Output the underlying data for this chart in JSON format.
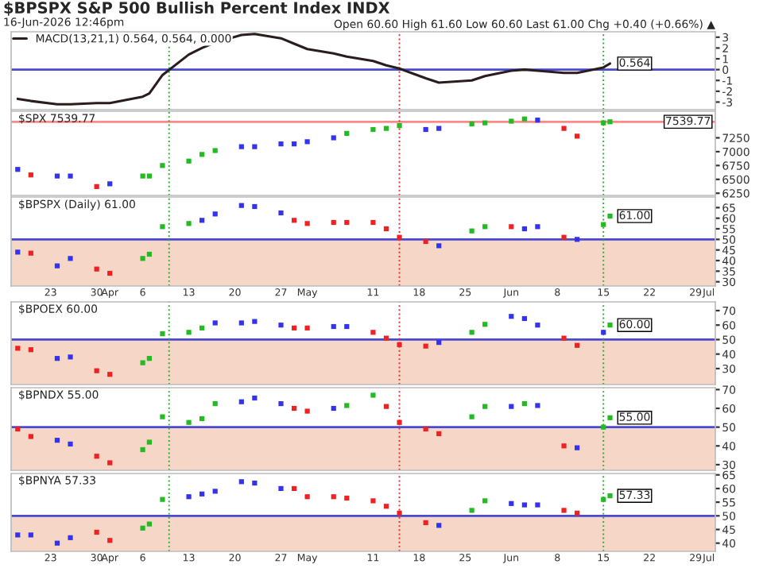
{
  "chart_data": [
    {
      "type": "line",
      "title": "$BPSPX S&P 500 Bullish Percent Index INDX",
      "subtitle": "16-Jun-2026 12:46pm",
      "annotations": [
        "Open 60.60 High 61.60 Low 60.60 Last 61.00 Chg +0.40 (+0.66%) ▲",
        {
          "text": "0.564",
          "x": "2026-06-16",
          "y": 0.564
        }
      ],
      "legend": "top left",
      "tick_labels": "y",
      "x": [
        "2026-03-18",
        "2026-03-20",
        "2026-03-24",
        "2026-03-26",
        "2026-03-30",
        "2026-04-01",
        "2026-04-06",
        "2026-04-07",
        "2026-04-09",
        "2026-04-13",
        "2026-04-15",
        "2026-04-17",
        "2026-04-21",
        "2026-04-23",
        "2026-04-27",
        "2026-04-29",
        "2026-05-01",
        "2026-05-05",
        "2026-05-07",
        "2026-05-11",
        "2026-05-13",
        "2026-05-15",
        "2026-05-19",
        "2026-05-21",
        "2026-05-26",
        "2026-05-28",
        "2026-06-01",
        "2026-06-03",
        "2026-06-05",
        "2026-06-09",
        "2026-06-11",
        "2026-06-15",
        "2026-06-16"
      ],
      "series": [
        {
          "name": "MACD(13,21,1) 0.564, 0.564, 0.000",
          "color": "#2b1d1d",
          "values": [
            -2.7,
            -2.9,
            -3.2,
            -3.2,
            -3.1,
            -3.1,
            -2.5,
            -2.2,
            -0.5,
            1.4,
            2.0,
            2.5,
            3.2,
            3.3,
            2.9,
            2.4,
            1.9,
            1.5,
            1.2,
            0.8,
            0.4,
            0.1,
            -0.8,
            -1.2,
            -1.0,
            -0.6,
            -0.1,
            0,
            -0.1,
            -0.3,
            -0.3,
            0.2,
            0.564
          ]
        }
      ],
      "xlim": [
        "2026-03-17",
        "2026-07-02"
      ],
      "ylim": [
        -3.7,
        3.5
      ],
      "yticks": [
        -3,
        -2,
        -1,
        0,
        1,
        2,
        3
      ],
      "ref_lines": [
        {
          "axis": "y",
          "value": 0,
          "color": "#4a4ad0",
          "line_style": "solid"
        },
        {
          "axis": "x",
          "value": "2026-04-10",
          "color": "#33aa33",
          "line_style": "dotted"
        },
        {
          "axis": "x",
          "value": "2026-05-15",
          "color": "#dd3333",
          "line_style": "dotted"
        },
        {
          "axis": "x",
          "value": "2026-06-15",
          "color": "#33aa33",
          "line_style": "dotted"
        }
      ]
    },
    {
      "type": "scatter",
      "title": "$SPX 7539.77",
      "marker": "square",
      "tick_labels": "y",
      "x": [
        "2026-03-18",
        "2026-03-20",
        "2026-03-24",
        "2026-03-26",
        "2026-03-30",
        "2026-04-01",
        "2026-04-06",
        "2026-04-07",
        "2026-04-09",
        "2026-04-13",
        "2026-04-15",
        "2026-04-17",
        "2026-04-21",
        "2026-04-23",
        "2026-04-27",
        "2026-04-29",
        "2026-05-01",
        "2026-05-05",
        "2026-05-07",
        "2026-05-11",
        "2026-05-13",
        "2026-05-15",
        "2026-05-19",
        "2026-05-21",
        "2026-05-26",
        "2026-05-28",
        "2026-06-01",
        "2026-06-03",
        "2026-06-05",
        "2026-06-09",
        "2026-06-11",
        "2026-06-15",
        "2026-06-16"
      ],
      "series": [
        {
          "values": [
            6680,
            6580,
            6560,
            6560,
            6370,
            6420,
            6560,
            6560,
            6750,
            6830,
            6950,
            7020,
            7090,
            7090,
            7140,
            7140,
            7180,
            7250,
            7330,
            7400,
            7420,
            7470,
            7400,
            7420,
            7500,
            7520,
            7550,
            7590,
            7570,
            7420,
            7280,
            7520,
            7539.77
          ],
          "colors": [
            "#3333ee",
            "#ee2222",
            "#3333ee",
            "#3333ee",
            "#ee2222",
            "#3333ee",
            "#22bb22",
            "#22bb22",
            "#22bb22",
            "#22bb22",
            "#22bb22",
            "#22bb22",
            "#3333ee",
            "#3333ee",
            "#3333ee",
            "#3333ee",
            "#3333ee",
            "#3333ee",
            "#22bb22",
            "#22bb22",
            "#22bb22",
            "#22bb22",
            "#3333ee",
            "#3333ee",
            "#22bb22",
            "#22bb22",
            "#22bb22",
            "#22bb22",
            "#3333ee",
            "#ee2222",
            "#ee2222",
            "#22bb22",
            "#22bb22"
          ]
        }
      ],
      "xlim": [
        "2026-03-17",
        "2026-07-02"
      ],
      "ylim": [
        6210,
        7730
      ],
      "yticks": [
        6250,
        6500,
        6750,
        7000,
        7250
      ],
      "ref_lines": [
        {
          "axis": "y",
          "value": 7539.77,
          "label": "7539.77",
          "color": "#ff8888",
          "line_style": "solid"
        },
        {
          "axis": "x",
          "value": "2026-04-10",
          "color": "#33aa33",
          "line_style": "dotted"
        },
        {
          "axis": "x",
          "value": "2026-05-15",
          "color": "#dd3333",
          "line_style": "dotted"
        },
        {
          "axis": "x",
          "value": "2026-06-15",
          "color": "#33aa33",
          "line_style": "dotted"
        }
      ]
    },
    {
      "type": "scatter",
      "title": "$BPSPX (Daily) 61.00",
      "marker": "square",
      "annotations": [
        {
          "text": "61.00",
          "x": "2026-06-16",
          "y": 61.0
        }
      ],
      "x": [
        "2026-03-18",
        "2026-03-20",
        "2026-03-24",
        "2026-03-26",
        "2026-03-30",
        "2026-04-01",
        "2026-04-06",
        "2026-04-07",
        "2026-04-09",
        "2026-04-13",
        "2026-04-15",
        "2026-04-17",
        "2026-04-21",
        "2026-04-23",
        "2026-04-27",
        "2026-04-29",
        "2026-05-01",
        "2026-05-05",
        "2026-05-07",
        "2026-05-11",
        "2026-05-13",
        "2026-05-15",
        "2026-05-19",
        "2026-05-21",
        "2026-05-26",
        "2026-05-28",
        "2026-06-01",
        "2026-06-03",
        "2026-06-05",
        "2026-06-09",
        "2026-06-11",
        "2026-06-15",
        "2026-06-16"
      ],
      "series": [
        {
          "values": [
            44,
            43.5,
            37.5,
            41,
            36,
            34,
            41,
            43,
            56,
            57.5,
            59,
            62,
            66,
            65.5,
            62.5,
            59,
            57.5,
            58,
            58,
            58,
            55,
            51,
            49,
            47,
            54,
            56,
            56,
            55,
            56,
            51,
            50,
            57,
            61.0
          ],
          "colors": [
            "#3333ee",
            "#ee2222",
            "#3333ee",
            "#3333ee",
            "#ee2222",
            "#ee2222",
            "#22bb22",
            "#22bb22",
            "#22bb22",
            "#22bb22",
            "#3333ee",
            "#3333ee",
            "#3333ee",
            "#3333ee",
            "#3333ee",
            "#ee2222",
            "#ee2222",
            "#ee2222",
            "#ee2222",
            "#ee2222",
            "#ee2222",
            "#ee2222",
            "#ee2222",
            "#3333ee",
            "#22bb22",
            "#22bb22",
            "#ee2222",
            "#3333ee",
            "#3333ee",
            "#ee2222",
            "#3333ee",
            "#22bb22",
            "#22bb22"
          ]
        }
      ],
      "xlim": [
        "2026-03-17",
        "2026-07-02"
      ],
      "ylim": [
        28,
        70
      ],
      "yticks": [
        30,
        35,
        40,
        45,
        50,
        55,
        60,
        65
      ],
      "xticks": [
        {
          "value": "2026-03-23",
          "label": "23"
        },
        {
          "value": "2026-03-30",
          "label": "30"
        },
        {
          "value": "2026-04-01",
          "label": "Apr"
        },
        {
          "value": "2026-04-06",
          "label": "6"
        },
        {
          "value": "2026-04-13",
          "label": "13"
        },
        {
          "value": "2026-04-20",
          "label": "20"
        },
        {
          "value": "2026-04-27",
          "label": "27"
        },
        {
          "value": "2026-05-01",
          "label": "May"
        },
        {
          "value": "2026-05-11",
          "label": "11"
        },
        {
          "value": "2026-05-18",
          "label": "18"
        },
        {
          "value": "2026-05-25",
          "label": "25"
        },
        {
          "value": "2026-06-01",
          "label": "Jun"
        },
        {
          "value": "2026-06-08",
          "label": "8"
        },
        {
          "value": "2026-06-15",
          "label": "15"
        },
        {
          "value": "2026-06-22",
          "label": "22"
        },
        {
          "value": "2026-06-29",
          "label": "29"
        },
        {
          "value": "2026-07-01",
          "label": "Jul"
        }
      ],
      "bands": [
        {
          "axis": "y",
          "from": 28,
          "to": 50,
          "color": "#f6d6c7"
        }
      ],
      "ref_lines": [
        {
          "axis": "y",
          "value": 50,
          "color": "#4a4ad0",
          "line_style": "solid"
        },
        {
          "axis": "x",
          "value": "2026-04-10",
          "color": "#33aa33",
          "line_style": "dotted"
        },
        {
          "axis": "x",
          "value": "2026-05-15",
          "color": "#dd3333",
          "line_style": "dotted"
        },
        {
          "axis": "x",
          "value": "2026-06-15",
          "color": "#33aa33",
          "line_style": "dotted"
        }
      ]
    },
    {
      "type": "scatter",
      "title": "$BPOEX 60.00",
      "marker": "square",
      "tick_labels": "y",
      "annotations": [
        {
          "text": "60.00",
          "x": "2026-06-16",
          "y": 60.0
        }
      ],
      "x": [
        "2026-03-18",
        "2026-03-20",
        "2026-03-24",
        "2026-03-26",
        "2026-03-30",
        "2026-04-01",
        "2026-04-06",
        "2026-04-07",
        "2026-04-09",
        "2026-04-13",
        "2026-04-15",
        "2026-04-17",
        "2026-04-21",
        "2026-04-23",
        "2026-04-27",
        "2026-04-29",
        "2026-05-01",
        "2026-05-05",
        "2026-05-07",
        "2026-05-11",
        "2026-05-13",
        "2026-05-15",
        "2026-05-19",
        "2026-05-21",
        "2026-05-26",
        "2026-05-28",
        "2026-06-01",
        "2026-06-03",
        "2026-06-05",
        "2026-06-09",
        "2026-06-11",
        "2026-06-15",
        "2026-06-16"
      ],
      "series": [
        {
          "values": [
            44,
            43,
            37,
            38,
            28.5,
            26,
            34,
            37,
            54,
            55,
            58,
            61.5,
            61.5,
            62.5,
            60,
            58,
            58,
            59,
            59,
            55,
            51,
            46.5,
            45.5,
            48,
            55,
            60.5,
            66,
            64.5,
            60,
            51,
            46,
            55,
            60.0
          ],
          "colors": [
            "#ee2222",
            "#ee2222",
            "#3333ee",
            "#3333ee",
            "#ee2222",
            "#ee2222",
            "#22bb22",
            "#22bb22",
            "#22bb22",
            "#22bb22",
            "#22bb22",
            "#3333ee",
            "#3333ee",
            "#3333ee",
            "#3333ee",
            "#ee2222",
            "#ee2222",
            "#3333ee",
            "#3333ee",
            "#ee2222",
            "#ee2222",
            "#ee2222",
            "#ee2222",
            "#3333ee",
            "#22bb22",
            "#22bb22",
            "#3333ee",
            "#3333ee",
            "#3333ee",
            "#ee2222",
            "#ee2222",
            "#3333ee",
            "#22bb22"
          ]
        }
      ],
      "xlim": [
        "2026-03-17",
        "2026-07-02"
      ],
      "ylim": [
        19,
        76
      ],
      "yticks": [
        30,
        40,
        50,
        60,
        70
      ],
      "bands": [
        {
          "axis": "y",
          "from": 19,
          "to": 50,
          "color": "#f6d6c7"
        }
      ],
      "ref_lines": [
        {
          "axis": "y",
          "value": 50,
          "color": "#4a4ad0",
          "line_style": "solid"
        },
        {
          "axis": "x",
          "value": "2026-04-10",
          "color": "#33aa33",
          "line_style": "dotted"
        },
        {
          "axis": "x",
          "value": "2026-05-15",
          "color": "#dd3333",
          "line_style": "dotted"
        },
        {
          "axis": "x",
          "value": "2026-06-15",
          "color": "#33aa33",
          "line_style": "dotted"
        }
      ]
    },
    {
      "type": "scatter",
      "title": "$BPNDX 55.00",
      "marker": "square",
      "tick_labels": "y",
      "annotations": [
        {
          "text": "55.00",
          "x": "2026-06-16",
          "y": 55.0
        }
      ],
      "x": [
        "2026-03-18",
        "2026-03-20",
        "2026-03-24",
        "2026-03-26",
        "2026-03-30",
        "2026-04-01",
        "2026-04-06",
        "2026-04-07",
        "2026-04-09",
        "2026-04-13",
        "2026-04-15",
        "2026-04-17",
        "2026-04-21",
        "2026-04-23",
        "2026-04-27",
        "2026-04-29",
        "2026-05-01",
        "2026-05-05",
        "2026-05-07",
        "2026-05-11",
        "2026-05-13",
        "2026-05-15",
        "2026-05-19",
        "2026-05-21",
        "2026-05-26",
        "2026-05-28",
        "2026-06-01",
        "2026-06-03",
        "2026-06-05",
        "2026-06-09",
        "2026-06-11",
        "2026-06-15",
        "2026-06-16"
      ],
      "series": [
        {
          "values": [
            49,
            45,
            43,
            41,
            34.5,
            31,
            38,
            42,
            55.5,
            52.5,
            54.5,
            62.5,
            63.5,
            65.5,
            62.5,
            60,
            58.5,
            60,
            61.5,
            67,
            61,
            52.5,
            49,
            46.5,
            55.5,
            61,
            61,
            62.5,
            61.5,
            40,
            39,
            50,
            55.0
          ],
          "colors": [
            "#ee2222",
            "#ee2222",
            "#3333ee",
            "#3333ee",
            "#ee2222",
            "#ee2222",
            "#22bb22",
            "#22bb22",
            "#22bb22",
            "#22bb22",
            "#22bb22",
            "#22bb22",
            "#3333ee",
            "#3333ee",
            "#3333ee",
            "#ee2222",
            "#ee2222",
            "#3333ee",
            "#22bb22",
            "#22bb22",
            "#ee2222",
            "#ee2222",
            "#ee2222",
            "#ee2222",
            "#22bb22",
            "#22bb22",
            "#3333ee",
            "#22bb22",
            "#3333ee",
            "#ee2222",
            "#3333ee",
            "#22bb22",
            "#22bb22"
          ]
        }
      ],
      "xlim": [
        "2026-03-17",
        "2026-07-02"
      ],
      "ylim": [
        27,
        71
      ],
      "yticks": [
        30,
        40,
        50,
        60,
        70
      ],
      "bands": [
        {
          "axis": "y",
          "from": 27,
          "to": 50,
          "color": "#f6d6c7"
        }
      ],
      "ref_lines": [
        {
          "axis": "y",
          "value": 50,
          "color": "#4a4ad0",
          "line_style": "solid"
        },
        {
          "axis": "x",
          "value": "2026-04-10",
          "color": "#33aa33",
          "line_style": "dotted"
        },
        {
          "axis": "x",
          "value": "2026-05-15",
          "color": "#dd3333",
          "line_style": "dotted"
        },
        {
          "axis": "x",
          "value": "2026-06-15",
          "color": "#33aa33",
          "line_style": "dotted"
        }
      ]
    },
    {
      "type": "scatter",
      "title": "$BPNYA 57.33",
      "marker": "square",
      "annotations": [
        {
          "text": "57.33",
          "x": "2026-06-16",
          "y": 57.33
        }
      ],
      "x": [
        "2026-03-18",
        "2026-03-20",
        "2026-03-24",
        "2026-03-26",
        "2026-03-30",
        "2026-04-01",
        "2026-04-06",
        "2026-04-07",
        "2026-04-09",
        "2026-04-13",
        "2026-04-15",
        "2026-04-17",
        "2026-04-21",
        "2026-04-23",
        "2026-04-27",
        "2026-04-29",
        "2026-05-01",
        "2026-05-05",
        "2026-05-07",
        "2026-05-11",
        "2026-05-13",
        "2026-05-15",
        "2026-05-19",
        "2026-05-21",
        "2026-05-26",
        "2026-05-28",
        "2026-06-01",
        "2026-06-03",
        "2026-06-05",
        "2026-06-09",
        "2026-06-11",
        "2026-06-15",
        "2026-06-16"
      ],
      "series": [
        {
          "values": [
            43,
            43,
            40,
            42,
            44,
            41,
            45.5,
            47,
            56,
            57,
            58,
            59,
            62.5,
            62,
            60,
            60,
            57,
            57,
            56.5,
            55.5,
            53.5,
            51,
            47.5,
            46.5,
            52,
            55.5,
            54.5,
            54,
            54,
            52,
            51,
            56,
            57.33
          ],
          "colors": [
            "#3333ee",
            "#3333ee",
            "#3333ee",
            "#3333ee",
            "#ee2222",
            "#ee2222",
            "#22bb22",
            "#22bb22",
            "#22bb22",
            "#3333ee",
            "#3333ee",
            "#3333ee",
            "#3333ee",
            "#3333ee",
            "#3333ee",
            "#ee2222",
            "#ee2222",
            "#ee2222",
            "#ee2222",
            "#ee2222",
            "#ee2222",
            "#ee2222",
            "#ee2222",
            "#3333ee",
            "#22bb22",
            "#22bb22",
            "#3333ee",
            "#3333ee",
            "#3333ee",
            "#ee2222",
            "#ee2222",
            "#22bb22",
            "#22bb22"
          ]
        }
      ],
      "xlim": [
        "2026-03-17",
        "2026-07-02"
      ],
      "ylim": [
        37,
        65.5
      ],
      "yticks": [
        40,
        45,
        50,
        55,
        60,
        65
      ],
      "xticks": [
        {
          "value": "2026-03-23",
          "label": "23"
        },
        {
          "value": "2026-03-30",
          "label": "30"
        },
        {
          "value": "2026-04-01",
          "label": "Apr"
        },
        {
          "value": "2026-04-06",
          "label": "6"
        },
        {
          "value": "2026-04-13",
          "label": "13"
        },
        {
          "value": "2026-04-20",
          "label": "20"
        },
        {
          "value": "2026-04-27",
          "label": "27"
        },
        {
          "value": "2026-05-01",
          "label": "May"
        },
        {
          "value": "2026-05-11",
          "label": "11"
        },
        {
          "value": "2026-05-18",
          "label": "18"
        },
        {
          "value": "2026-05-25",
          "label": "25"
        },
        {
          "value": "2026-06-01",
          "label": "Jun"
        },
        {
          "value": "2026-06-08",
          "label": "8"
        },
        {
          "value": "2026-06-15",
          "label": "15"
        },
        {
          "value": "2026-06-22",
          "label": "22"
        },
        {
          "value": "2026-06-29",
          "label": "29"
        },
        {
          "value": "2026-07-01",
          "label": "Jul"
        }
      ],
      "bands": [
        {
          "axis": "y",
          "from": 37,
          "to": 50,
          "color": "#f6d6c7"
        }
      ],
      "ref_lines": [
        {
          "axis": "y",
          "value": 50,
          "color": "#4a4ad0",
          "line_style": "solid"
        },
        {
          "axis": "x",
          "value": "2026-04-10",
          "color": "#33aa33",
          "line_style": "dotted"
        },
        {
          "axis": "x",
          "value": "2026-05-15",
          "color": "#dd3333",
          "line_style": "dotted"
        },
        {
          "axis": "x",
          "value": "2026-06-15",
          "color": "#33aa33",
          "line_style": "dotted"
        }
      ]
    }
  ]
}
